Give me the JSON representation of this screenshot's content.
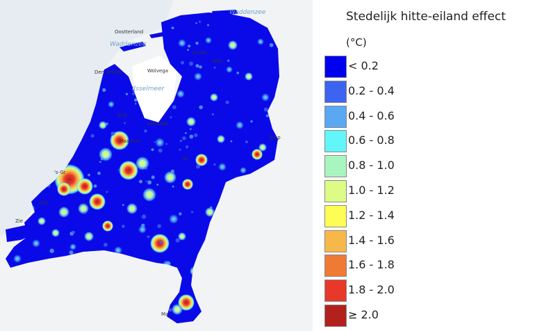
{
  "legend": {
    "title": "Stedelijk hitte-eiland effect",
    "unit": "(°C)",
    "items": [
      {
        "label": "< 0.2",
        "color": "#0000ee"
      },
      {
        "label": "0.2 - 0.4",
        "color": "#3d64f0"
      },
      {
        "label": "0.4 - 0.6",
        "color": "#5aa8f2"
      },
      {
        "label": "0.6 - 0.8",
        "color": "#62f6fb"
      },
      {
        "label": "0.8 - 1.0",
        "color": "#a8f5c0"
      },
      {
        "label": "1.0 - 1.2",
        "color": "#dcfc86"
      },
      {
        "label": "1.2 - 1.4",
        "color": "#fdfd55"
      },
      {
        "label": "1.4 - 1.6",
        "color": "#f7b84a"
      },
      {
        "label": "1.6 - 1.8",
        "color": "#ef7a34"
      },
      {
        "label": "1.8 - 2.0",
        "color": "#e8382a"
      },
      {
        "label": "≥ 2.0",
        "color": "#b2211c"
      }
    ]
  },
  "map": {
    "water_labels": [
      "Waddenzee",
      "IJsselmeer",
      "Waddenzee"
    ],
    "place_labels": [
      "Oostterland",
      "Den Helder",
      "Wolvega",
      "Lelystad",
      "Haarlem",
      "'s-Gr",
      "Zie",
      "Ozo",
      "Ap",
      "Emp",
      "Ma",
      "Enk",
      "Wen",
      "Sneek"
    ]
  }
}
